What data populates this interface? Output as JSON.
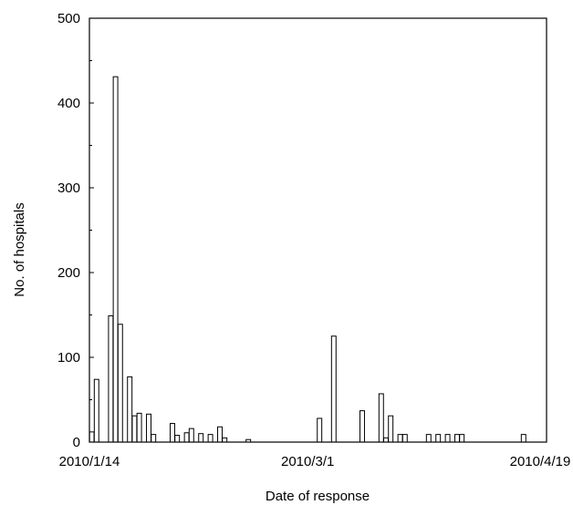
{
  "chart_data": {
    "type": "bar",
    "title": "",
    "xlabel": "Date of response",
    "ylabel": "No. of hospitals",
    "ylim": [
      0,
      500
    ],
    "y_ticks": [
      "0",
      "100",
      "200",
      "300",
      "400",
      "500"
    ],
    "y_tick_values": [
      0,
      100,
      200,
      300,
      400,
      500
    ],
    "x_start_date": "2010/1/14",
    "x_end_date": "2010/4/19",
    "x_ticks": [
      "2010/1/14",
      "2010/3/1",
      "2010/4/19"
    ],
    "grid": false,
    "legend": "none",
    "series": [
      {
        "x": [
          "2010/1/14",
          "2010/1/15",
          "2010/1/18",
          "2010/1/19",
          "2010/1/20",
          "2010/1/22",
          "2010/1/23",
          "2010/1/24",
          "2010/1/26",
          "2010/1/27",
          "2010/1/31",
          "2010/2/1",
          "2010/2/3",
          "2010/2/4",
          "2010/2/6",
          "2010/2/8",
          "2010/2/10",
          "2010/2/11",
          "2010/2/16",
          "2010/3/3",
          "2010/3/6",
          "2010/3/12",
          "2010/3/16",
          "2010/3/17",
          "2010/3/18",
          "2010/3/20",
          "2010/3/21",
          "2010/3/26",
          "2010/3/28",
          "2010/3/30",
          "2010/4/1",
          "2010/4/2",
          "2010/4/15"
        ],
        "values": [
          12,
          74,
          149,
          431,
          139,
          77,
          31,
          34,
          33,
          9,
          22,
          8,
          11,
          16,
          10,
          9,
          18,
          5,
          3,
          28,
          125,
          37,
          57,
          5,
          31,
          9,
          9,
          9,
          9,
          9,
          9,
          9,
          9
        ]
      }
    ],
    "colors": {
      "bar_fill": "#ffffff",
      "bar_stroke": "#000000",
      "axis": "#000000"
    }
  }
}
